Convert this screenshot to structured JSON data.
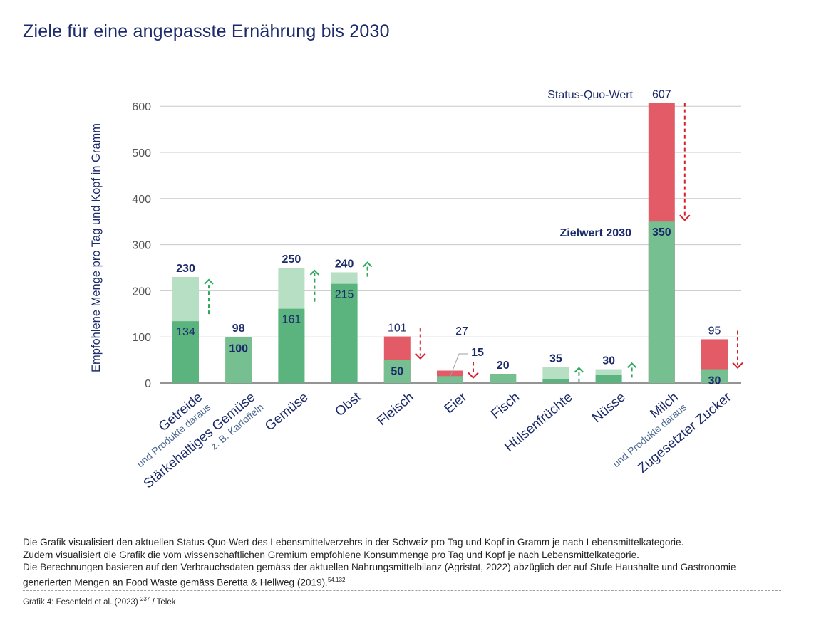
{
  "title": "Ziele für eine angepasste Ernährung bis 2030",
  "colors": {
    "green_dark": "#5bb47e",
    "green_mid": "#76bf90",
    "green_light": "#b7dfc3",
    "red": "#e35b67",
    "navy": "#1b2a6b",
    "label_blue": "#4a6790",
    "grid": "#c8c8c8"
  },
  "chart_data": {
    "type": "bar",
    "ylabel": "Empfohlene Menge pro Tag und Kopf in Gramm",
    "ylim": [
      0,
      620
    ],
    "yticks": [
      0,
      100,
      200,
      300,
      400,
      500,
      600
    ],
    "legend": {
      "status_quo": "Status-Quo-Wert",
      "target": "Zielwert 2030"
    },
    "categories": [
      {
        "name": "Getreide",
        "sub": "und Produkte daraus",
        "status_quo": 134,
        "target": 230,
        "direction": "up"
      },
      {
        "name": "Stärkehaltiges Gemüse",
        "sub": "z. B. Kartoffeln",
        "status_quo": 98,
        "target": 100,
        "direction": "none"
      },
      {
        "name": "Gemüse",
        "sub": "",
        "status_quo": 161,
        "target": 250,
        "direction": "up"
      },
      {
        "name": "Obst",
        "sub": "",
        "status_quo": 215,
        "target": 240,
        "direction": "up"
      },
      {
        "name": "Fleisch",
        "sub": "",
        "status_quo": 101,
        "target": 50,
        "direction": "down"
      },
      {
        "name": "Eier",
        "sub": "",
        "status_quo": 27,
        "target": 15,
        "direction": "down"
      },
      {
        "name": "Fisch",
        "sub": "",
        "status_quo": 20,
        "target": 20,
        "direction": "none"
      },
      {
        "name": "Hülsenfrüchte",
        "sub": "",
        "status_quo": 8,
        "target": 35,
        "direction": "up"
      },
      {
        "name": "Nüsse",
        "sub": "",
        "status_quo": 18,
        "target": 30,
        "direction": "up"
      },
      {
        "name": "Milch",
        "sub": "und Produkte daraus",
        "status_quo": 607,
        "target": 350,
        "direction": "down"
      },
      {
        "name": "Zugesetzter Zucker",
        "sub": "",
        "status_quo": 95,
        "target": 30,
        "direction": "down"
      }
    ],
    "value_labels": [
      {
        "category": "Getreide",
        "top": "230",
        "inside": "134"
      },
      {
        "category": "Stärkehaltiges Gemüse",
        "top": "98",
        "inside": "100"
      },
      {
        "category": "Gemüse",
        "top": "250",
        "inside": "161"
      },
      {
        "category": "Obst",
        "top": "240",
        "inside": "215"
      },
      {
        "category": "Fleisch",
        "top": "101",
        "inside": "50"
      },
      {
        "category": "Eier",
        "top": "27",
        "inside": "15"
      },
      {
        "category": "Fisch",
        "top": "20",
        "inside": ""
      },
      {
        "category": "Hülsenfrüchte",
        "top": "35",
        "inside": ""
      },
      {
        "category": "Nüsse",
        "top": "30",
        "inside": ""
      },
      {
        "category": "Milch",
        "top": "607",
        "inside": "350"
      },
      {
        "category": "Zugesetzter Zucker",
        "top": "95",
        "inside": "30"
      }
    ]
  },
  "footer": {
    "line1": "Die Grafik visualisiert den aktuellen Status-Quo-Wert des Lebensmittelverzehrs in der Schweiz pro Tag und Kopf in Gramm je nach Lebensmittelkategorie.",
    "line2": "Zudem visualisiert die Grafik die vom wissenschaftlichen Gremium empfohlene Konsummenge pro Tag und Kopf je nach Lebensmittelkategorie.",
    "line3": "Die Berechnungen basieren auf den Verbrauchsdaten gemäss der aktuellen Nahrungsmittelbilanz (Agristat, 2022) abzüglich der auf Stufe Haushalte und Gastronomie generierten Mengen an Food Waste gemäss Beretta & Hellweg (2019).",
    "line3_ref": "54,132",
    "credit": "Grafik 4: Fesenfeld et al. (2023)",
    "credit_ref": "237",
    "credit_suffix": " / Telek"
  }
}
